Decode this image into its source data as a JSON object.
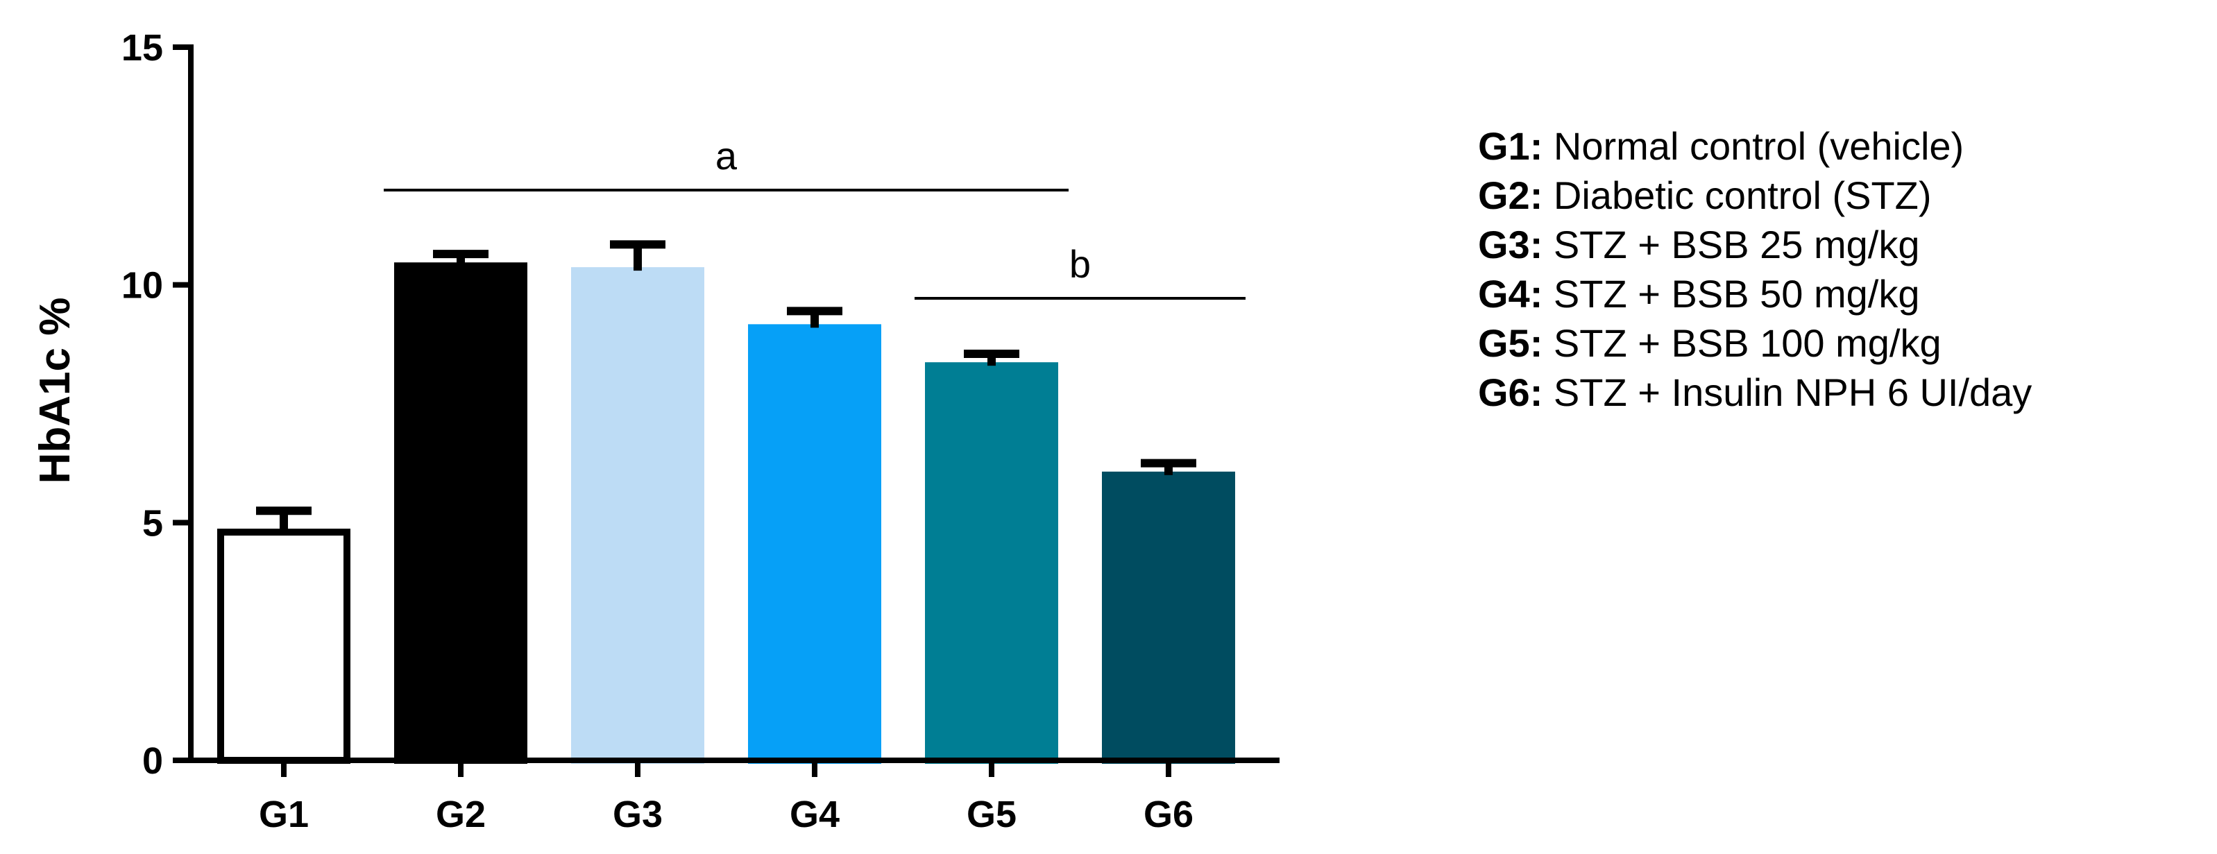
{
  "chart_data": {
    "type": "bar",
    "categories": [
      "G1",
      "G2",
      "G3",
      "G4",
      "G5",
      "G6"
    ],
    "values": [
      4.8,
      10.4,
      10.3,
      9.1,
      8.3,
      6.0
    ],
    "errors": [
      0.45,
      0.25,
      0.55,
      0.35,
      0.25,
      0.25
    ],
    "bar_colors": [
      "#ffffff",
      "#000000",
      "#bddcf5",
      "#06a0f7",
      "#007e94",
      "#004c60"
    ],
    "bar_edge_colors": [
      "#000000",
      "#000000",
      "#bddcf5",
      "#06a0f7",
      "#007e94",
      "#004c60"
    ],
    "ylabel": "HbA1c %",
    "ylim": [
      0,
      15
    ],
    "yticks": [
      0,
      5,
      10,
      15
    ],
    "significance": [
      {
        "label": "a",
        "from": "G2",
        "to": "G5"
      },
      {
        "label": "b",
        "from": "G5",
        "to": "G6"
      }
    ],
    "legend": [
      {
        "code": "G1:",
        "text": "Normal control (vehicle)"
      },
      {
        "code": "G2:",
        "text": "Diabetic control (STZ)"
      },
      {
        "code": "G3:",
        "text": "STZ + BSB 25 mg/kg"
      },
      {
        "code": "G4:",
        "text": "STZ + BSB 50 mg/kg"
      },
      {
        "code": "G5:",
        "text": "STZ + BSB 100 mg/kg"
      },
      {
        "code": "G6:",
        "text": "STZ + Insulin NPH 6 UI/day"
      }
    ]
  }
}
